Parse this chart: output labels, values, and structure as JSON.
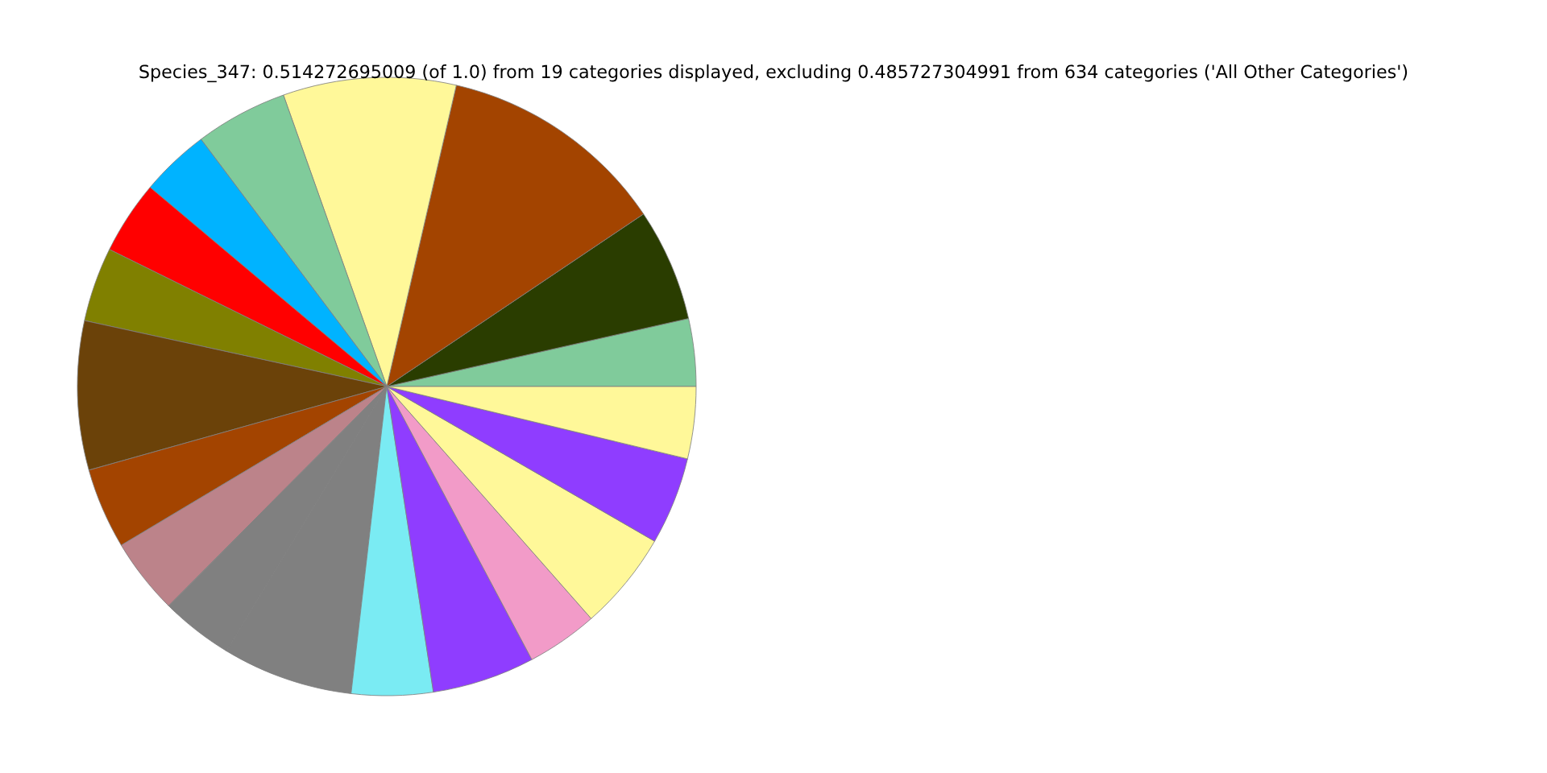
{
  "chart_data": {
    "type": "pie",
    "title": "Species_347: 0.514272695009 (of 1.0) from 19 categories displayed, excluding 0.485727304991 from 634 categories ('All Other Categories')",
    "categories": [
      null,
      null,
      null,
      null,
      null,
      null,
      null,
      null,
      null,
      null,
      null,
      null,
      null,
      null,
      null,
      null,
      null,
      null,
      null
    ],
    "values": [
      3.53,
      5.89,
      11.97,
      9.03,
      4.83,
      3.61,
      3.83,
      3.89,
      7.78,
      4.22,
      3.97,
      3.78,
      6.83,
      4.25,
      5.36,
      3.72,
      5.17,
      4.58,
      3.76
    ],
    "colors": [
      "#80cb9b",
      "#2a3d00",
      "#a34400",
      "#fff899",
      "#80cb9b",
      "#00b3ff",
      "#ff0000",
      "#808000",
      "#6b4209",
      "#a34400",
      "#bc838a",
      "#808080",
      "#808080",
      "#7aebf3",
      "#8f3dff",
      "#f29bc8",
      "#fff899",
      "#8f3dff",
      "#fff899"
    ]
  }
}
